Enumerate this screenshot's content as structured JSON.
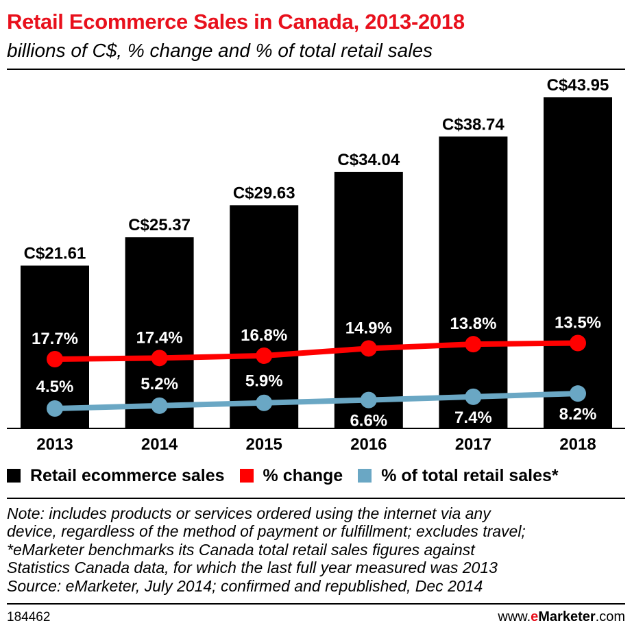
{
  "title": "Retail Ecommerce Sales in Canada, 2013-2018",
  "subtitle": "billions of C$, % change and % of total retail sales",
  "chart_data": {
    "type": "bar",
    "categories": [
      "2013",
      "2014",
      "2015",
      "2016",
      "2017",
      "2018"
    ],
    "series": [
      {
        "name": "Retail ecommerce sales",
        "type": "bar",
        "values": [
          21.61,
          25.37,
          29.63,
          34.04,
          38.74,
          43.95
        ],
        "labels": [
          "C$21.61",
          "C$25.37",
          "C$29.63",
          "C$34.04",
          "C$38.74",
          "C$43.95"
        ],
        "color": "#000000"
      },
      {
        "name": "% change",
        "type": "line",
        "values": [
          17.7,
          17.4,
          16.8,
          14.9,
          13.8,
          13.5
        ],
        "labels": [
          "17.7%",
          "17.4%",
          "16.8%",
          "14.9%",
          "13.8%",
          "13.5%"
        ],
        "color": "#ff0000"
      },
      {
        "name": "% of total retail sales*",
        "type": "line",
        "values": [
          4.5,
          5.2,
          5.9,
          6.6,
          7.4,
          8.2
        ],
        "labels": [
          "4.5%",
          "5.2%",
          "5.9%",
          "6.6%",
          "7.4%",
          "8.2%"
        ],
        "color": "#6aa7c4"
      }
    ],
    "legend_position": "bottom",
    "grid": false
  },
  "note_lines": [
    "Note: includes products or services ordered using the internet via any",
    "device, regardless of the method of payment or fulfillment; excludes travel;",
    "*eMarketer benchmarks its Canada total retail sales figures against",
    "Statistics Canada data, for which the last full year measured was 2013",
    "Source: eMarketer, July 2014; confirmed and republished, Dec 2014"
  ],
  "footer": {
    "id": "184462",
    "brand_prefix": "www.",
    "brand_e": "e",
    "brand_name": "Marketer",
    "brand_suffix": ".com"
  }
}
